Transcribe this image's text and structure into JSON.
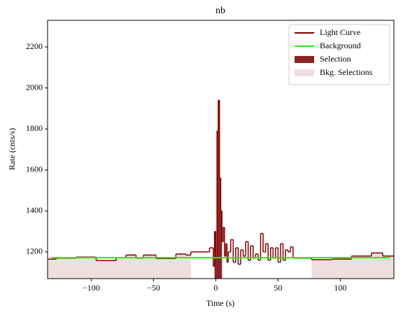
{
  "chart_data": {
    "type": "step",
    "title": "nb",
    "xlabel": "Time (s)",
    "ylabel": "Rate (cnts/s)",
    "xlim": [
      -135,
      143
    ],
    "ylim": [
      1070,
      2330
    ],
    "xticks": [
      {
        "value": -100,
        "label": "−100"
      },
      {
        "value": -50,
        "label": "−50"
      },
      0,
      50,
      100
    ],
    "yticks": [
      1200,
      1400,
      1600,
      1800,
      2000,
      2200
    ],
    "grid": false,
    "legend": "upper right",
    "series": [
      {
        "name": "Light Curve",
        "color": "#800000",
        "x": [
          -135,
          -128,
          -112,
          -96,
          -80,
          -72,
          -64,
          -58,
          -48,
          -32,
          -24,
          -20,
          -5,
          -3,
          -2,
          -1,
          0,
          1,
          2,
          3,
          4,
          5,
          6,
          7,
          8,
          9,
          10,
          12,
          14,
          16,
          18,
          20,
          22,
          24,
          26,
          28,
          30,
          32,
          34,
          36,
          38,
          40,
          42,
          44,
          46,
          48,
          50,
          52,
          54,
          56,
          58,
          60,
          62,
          63,
          77,
          93,
          109,
          125,
          134
        ],
        "values": [
          1165,
          1170,
          1175,
          1158,
          1172,
          1185,
          1170,
          1185,
          1168,
          1190,
          1185,
          1200,
          1220,
          1220,
          1130,
          1300,
          1180,
          1790,
          1940,
          1560,
          1400,
          1250,
          1320,
          1180,
          1240,
          1150,
          1200,
          1260,
          1150,
          1220,
          1140,
          1210,
          1180,
          1250,
          1160,
          1230,
          1170,
          1190,
          1160,
          1290,
          1200,
          1240,
          1160,
          1220,
          1170,
          1220,
          1150,
          1240,
          1160,
          1210,
          1200,
          1225,
          1170,
          1170,
          1162,
          1165,
          1180,
          1195,
          1180
        ]
      },
      {
        "name": "Background",
        "color": "#22ee11",
        "x": [
          -132,
          140
        ],
        "values": [
          1172,
          1172
        ]
      }
    ],
    "selections": [
      {
        "name": "Selection",
        "color": "#8b2323",
        "ranges": [
          [
            -1,
            5
          ]
        ]
      },
      {
        "name": "Bkg. Selections",
        "color": "#efdede",
        "ranges": [
          [
            -135,
            -20
          ],
          [
            77,
            143
          ]
        ]
      }
    ]
  }
}
